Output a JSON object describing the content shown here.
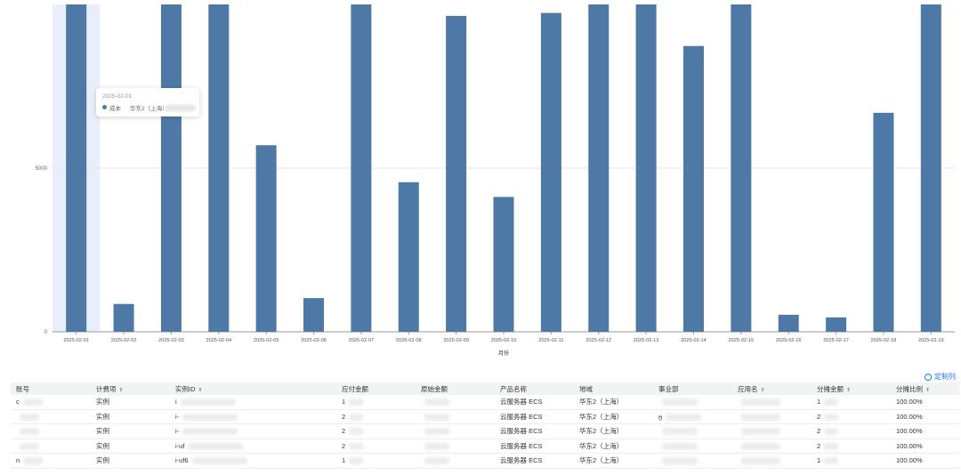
{
  "chart_data": {
    "type": "bar",
    "xlabel": "月份",
    "ylabel": "",
    "ylim": [
      0,
      10000
    ],
    "yticks": [
      0,
      5000
    ],
    "categories": [
      "2025-02-01",
      "2025-02-02",
      "2025-02-03",
      "2025-02-04",
      "2025-02-05",
      "2025-02-06",
      "2025-02-07",
      "2025-02-08",
      "2025-02-09",
      "2025-02-10",
      "2025-02-11",
      "2025-02-12",
      "2025-02-13",
      "2025-02-14",
      "2025-02-15",
      "2025-02-16",
      "2025-02-17",
      "2025-02-18",
      "2025-02-19"
    ],
    "values": [
      10000,
      850,
      10000,
      10000,
      5700,
      1030,
      10000,
      4570,
      9650,
      4120,
      9740,
      10000,
      10000,
      8730,
      10000,
      520,
      440,
      6690,
      10000
    ],
    "bar_color": "#4e79a7",
    "highlight_color": "#e8eefa",
    "highlight_index": 0
  },
  "tooltip": {
    "date": "2025-02-01",
    "series": "成本",
    "value": "华东2（上海）："
  },
  "customize_label": "定制列",
  "table": {
    "columns": [
      {
        "label": "账号",
        "sortable": false
      },
      {
        "label": "计费项",
        "sortable": true
      },
      {
        "label": "实例ID",
        "sortable": true
      },
      {
        "label": "应付金额",
        "sortable": false
      },
      {
        "label": "原始金额",
        "sortable": false
      },
      {
        "label": "产品名称",
        "sortable": false
      },
      {
        "label": "地域",
        "sortable": false
      },
      {
        "label": "事业部",
        "sortable": false
      },
      {
        "label": "应用名",
        "sortable": true
      },
      {
        "label": "分摊金额",
        "sortable": true
      },
      {
        "label": "分摊比例",
        "sortable": true
      }
    ],
    "rows": [
      {
        "account": "c",
        "item": "实例",
        "instance": "i",
        "payable": "1",
        "original": "",
        "product": "云服务器 ECS",
        "region": "华东2（上海）",
        "dept": "",
        "app": "",
        "share": "1",
        "ratio": "100.00%"
      },
      {
        "account": "",
        "item": "实例",
        "instance": "i-",
        "payable": "2",
        "original": "",
        "product": "云服务器 ECS",
        "region": "华东2（上海）",
        "dept": "ӈ",
        "app": "",
        "share": "2",
        "ratio": "100.00%"
      },
      {
        "account": "",
        "item": "实例",
        "instance": "i-",
        "payable": "2",
        "original": "",
        "product": "云服务器 ECS",
        "region": "华东2（上海）",
        "dept": "",
        "app": "",
        "share": "2",
        "ratio": "100.00%"
      },
      {
        "account": "",
        "item": "实例",
        "instance": "i-uf",
        "payable": "2",
        "original": "",
        "product": "云服务器 ECS",
        "region": "华东2（上海）",
        "dept": "",
        "app": "",
        "share": "2",
        "ratio": "100.00%"
      },
      {
        "account": "n",
        "item": "实例",
        "instance": "i-uf6",
        "payable": "1",
        "original": "",
        "product": "云服务器 ECS",
        "region": "华东2（上海）",
        "dept": "",
        "app": "",
        "share": "1",
        "ratio": "100.00%"
      }
    ]
  }
}
